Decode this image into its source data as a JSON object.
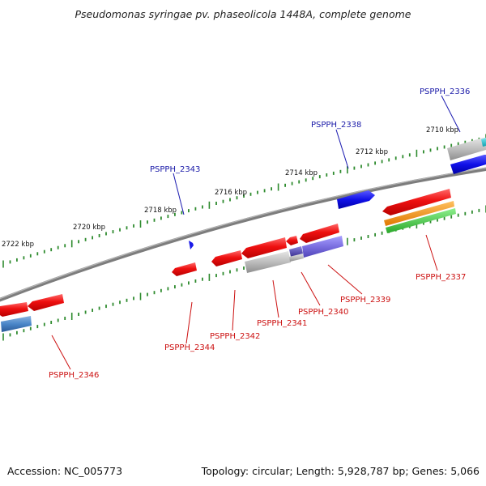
{
  "title": "Pseudomonas syringae pv. phaseolicola 1448A, complete genome",
  "footer": {
    "accession": "Accession: NC_005773",
    "summary": "Topology: circular; Length: 5,928,787 bp; Genes: 5,066"
  },
  "colors": {
    "backbone": "#8a8a8a",
    "tick": "#2e8b2e",
    "forward_label": "#1a1aa8",
    "reverse_label": "#cc1111"
  },
  "scale_labels": [
    "2710 kbp",
    "2712 kbp",
    "2714 kbp",
    "2716 kbp",
    "2718 kbp",
    "2720 kbp",
    "2722 kbp"
  ],
  "genes": [
    {
      "id": "PSPPH_2336",
      "strand": "forward",
      "color": "#12a8b8"
    },
    {
      "id": "PSPPH_2338",
      "strand": "forward",
      "color": "#1a1ae0"
    },
    {
      "id": "PSPPH_2343",
      "strand": "forward",
      "color": "#1a1ae0"
    },
    {
      "id": "PSPPH_2337",
      "strand": "reverse",
      "color": "#e8141a"
    },
    {
      "id": "PSPPH_2339",
      "strand": "reverse",
      "color": "#7a6ee0"
    },
    {
      "id": "PSPPH_2340",
      "strand": "reverse",
      "color": "#e8141a"
    },
    {
      "id": "PSPPH_2341",
      "strand": "reverse",
      "color": "#e8141a"
    },
    {
      "id": "PSPPH_2342",
      "strand": "reverse",
      "color": "#e8141a"
    },
    {
      "id": "PSPPH_2344",
      "strand": "reverse",
      "color": "#e8141a"
    },
    {
      "id": "PSPPH_2346",
      "strand": "reverse",
      "color": "#e8141a"
    }
  ]
}
